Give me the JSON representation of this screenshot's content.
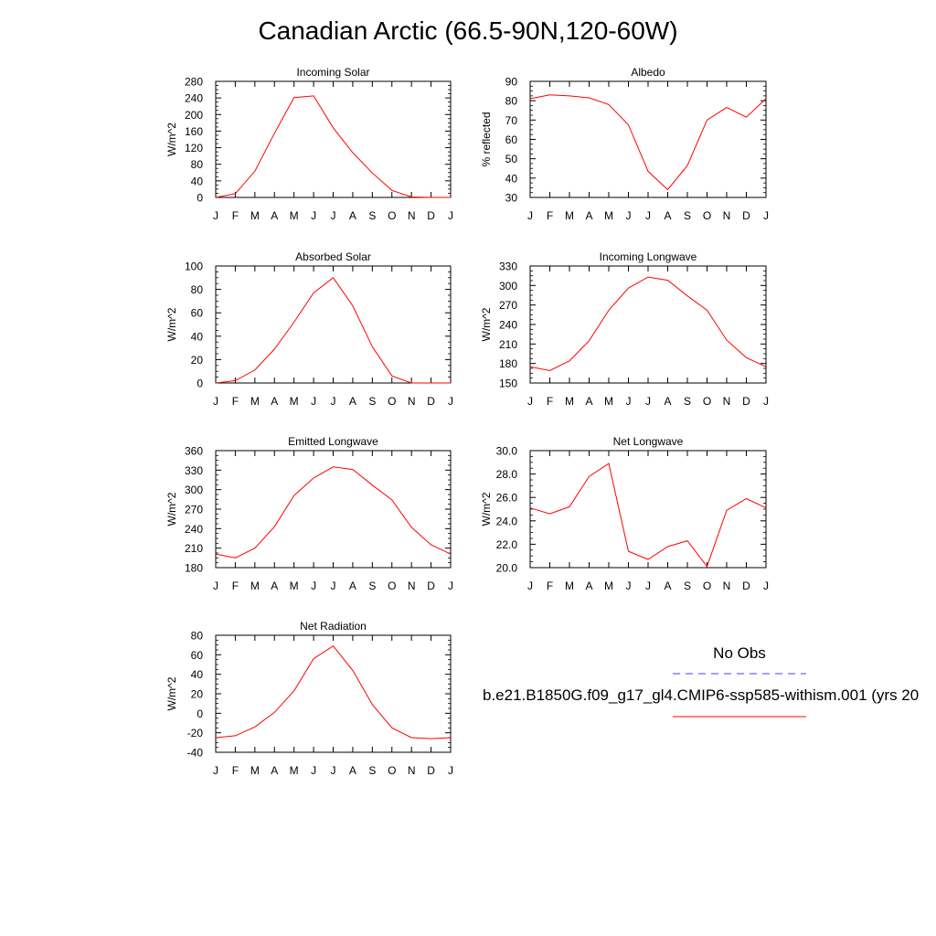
{
  "figure": {
    "title": "Canadian Arctic (66.5-90N,120-60W)",
    "legend": {
      "obs_label": "No Obs",
      "obs_color": "#4040ff",
      "model_label": "b.e21.B1850G.f09_g17_gl4.CMIP6-ssp585-withism.001 (yrs 20",
      "model_color": "#ff0000"
    }
  },
  "chart_data": [
    {
      "type": "line",
      "title": "Incoming Solar",
      "ylabel": "W/m^2",
      "categories": [
        "J",
        "F",
        "M",
        "A",
        "M",
        "J",
        "J",
        "A",
        "S",
        "O",
        "N",
        "D",
        "J"
      ],
      "ylim": [
        0,
        280
      ],
      "yticks": [
        "0",
        "40",
        "80",
        "120",
        "160",
        "200",
        "240",
        "280"
      ],
      "series": [
        {
          "values": [
            0,
            9,
            63,
            155,
            241,
            245,
            168,
            108,
            59,
            17,
            1,
            0,
            0
          ],
          "color": "#ff0000"
        }
      ]
    },
    {
      "type": "line",
      "title": "Albedo",
      "ylabel": "% reflected",
      "categories": [
        "J",
        "F",
        "M",
        "A",
        "M",
        "J",
        "J",
        "A",
        "S",
        "O",
        "N",
        "D",
        "J"
      ],
      "ylim": [
        30,
        90
      ],
      "yticks": [
        "30",
        "40",
        "50",
        "60",
        "70",
        "80",
        "90"
      ],
      "series": [
        {
          "values": [
            81,
            83,
            82.5,
            81.5,
            78,
            67.5,
            43.5,
            34,
            46.5,
            70,
            76.5,
            71.5,
            81
          ],
          "color": "#ff0000"
        }
      ]
    },
    {
      "type": "line",
      "title": "Absorbed Solar",
      "ylabel": "W/m^2",
      "categories": [
        "J",
        "F",
        "M",
        "A",
        "M",
        "J",
        "J",
        "A",
        "S",
        "O",
        "N",
        "D",
        "J"
      ],
      "ylim": [
        0,
        100
      ],
      "yticks": [
        "0",
        "20",
        "40",
        "60",
        "80",
        "100"
      ],
      "series": [
        {
          "values": [
            0,
            2,
            11,
            29,
            52,
            77,
            90,
            66,
            31,
            6,
            0,
            0,
            0
          ],
          "color": "#ff0000"
        }
      ]
    },
    {
      "type": "line",
      "title": "Incoming Longwave",
      "ylabel": "W/m^2",
      "categories": [
        "J",
        "F",
        "M",
        "A",
        "M",
        "J",
        "J",
        "A",
        "S",
        "O",
        "N",
        "D",
        "J"
      ],
      "ylim": [
        150,
        330
      ],
      "yticks": [
        "150",
        "180",
        "210",
        "240",
        "270",
        "300",
        "330"
      ],
      "series": [
        {
          "values": [
            175,
            169,
            184,
            215,
            262,
            296,
            313,
            308,
            284,
            262,
            216,
            189,
            175
          ],
          "color": "#ff0000"
        }
      ]
    },
    {
      "type": "line",
      "title": "Emitted Longwave",
      "ylabel": "W/m^2",
      "categories": [
        "J",
        "F",
        "M",
        "A",
        "M",
        "J",
        "J",
        "A",
        "S",
        "O",
        "N",
        "D",
        "J"
      ],
      "ylim": [
        180,
        360
      ],
      "yticks": [
        "180",
        "210",
        "240",
        "270",
        "300",
        "330",
        "360"
      ],
      "series": [
        {
          "values": [
            201,
            195,
            210,
            243,
            291,
            318,
            335,
            331,
            307,
            284,
            242,
            215,
            201
          ],
          "color": "#ff0000"
        }
      ]
    },
    {
      "type": "line",
      "title": "Net Longwave",
      "ylabel": "W/m^2",
      "categories": [
        "J",
        "F",
        "M",
        "A",
        "M",
        "J",
        "J",
        "A",
        "S",
        "O",
        "N",
        "D",
        "J"
      ],
      "ylim": [
        20,
        30
      ],
      "yticks": [
        "20.0",
        "22.0",
        "24.0",
        "26.0",
        "28.0",
        "30.0"
      ],
      "series": [
        {
          "values": [
            25.1,
            24.6,
            25.2,
            27.8,
            28.9,
            21.4,
            20.7,
            21.8,
            22.3,
            20.1,
            24.9,
            25.9,
            25.1
          ],
          "color": "#ff0000"
        }
      ]
    },
    {
      "type": "line",
      "title": "Net Radiation",
      "ylabel": "W/m^2",
      "categories": [
        "J",
        "F",
        "M",
        "A",
        "M",
        "J",
        "J",
        "A",
        "S",
        "O",
        "N",
        "D",
        "J"
      ],
      "ylim": [
        -40,
        80
      ],
      "yticks": [
        "-40",
        "-20",
        "0",
        "20",
        "40",
        "60",
        "80"
      ],
      "series": [
        {
          "values": [
            -25,
            -23,
            -14,
            1,
            23,
            56,
            69,
            44,
            9,
            -15,
            -25,
            -26,
            -25
          ],
          "color": "#ff0000"
        }
      ]
    }
  ]
}
